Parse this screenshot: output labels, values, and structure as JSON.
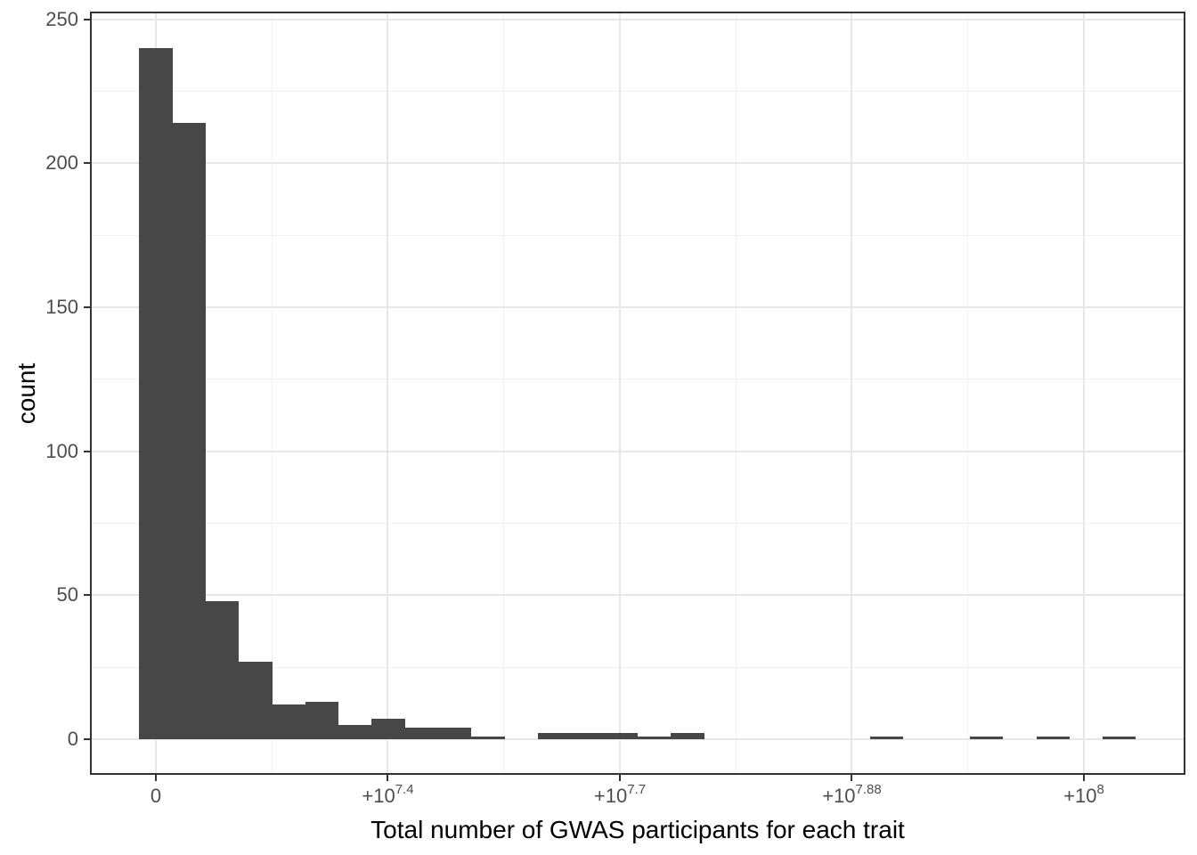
{
  "chart_data": {
    "type": "bar",
    "subtype": "histogram",
    "title": "",
    "xlabel": "Total number of GWAS participants for each trait",
    "ylabel": "count",
    "legend": false,
    "grid": true,
    "bar_color": "#474747",
    "panel_border_color": "#333333",
    "grid_major_color": "#e7e7e7",
    "grid_minor_color": "#f1f1f1",
    "tick_mark_color": "#333333",
    "tick_label_color": "#4d4d4d",
    "axis_title_color": "#000000",
    "background_color": "#ffffff",
    "xlim": [
      -6910000,
      110750000
    ],
    "ylim": [
      -11.8,
      252.1
    ],
    "bin_start": -1790000,
    "bin_width": 3580000,
    "counts": [
      240,
      214,
      48,
      27,
      12,
      13,
      5,
      7,
      4,
      4,
      1,
      0,
      2,
      2,
      2,
      1,
      2,
      0,
      0,
      0,
      0,
      0,
      1,
      0,
      0,
      1,
      0,
      1,
      0,
      1
    ],
    "x_ticks": [
      {
        "value": 0,
        "base": "0",
        "exp": ""
      },
      {
        "value": 25000000,
        "base": "+10",
        "exp": "7.4"
      },
      {
        "value": 50000000,
        "base": "+10",
        "exp": "7.7"
      },
      {
        "value": 75000000,
        "base": "+10",
        "exp": "7.88"
      },
      {
        "value": 100000000,
        "base": "+10",
        "exp": "8"
      }
    ],
    "x_minor_ticks": [
      12500000,
      37500000,
      62500000,
      87500000
    ],
    "y_ticks": [
      0,
      50,
      100,
      150,
      200,
      250
    ],
    "y_minor_ticks": [
      25,
      75,
      125,
      175,
      225
    ]
  }
}
